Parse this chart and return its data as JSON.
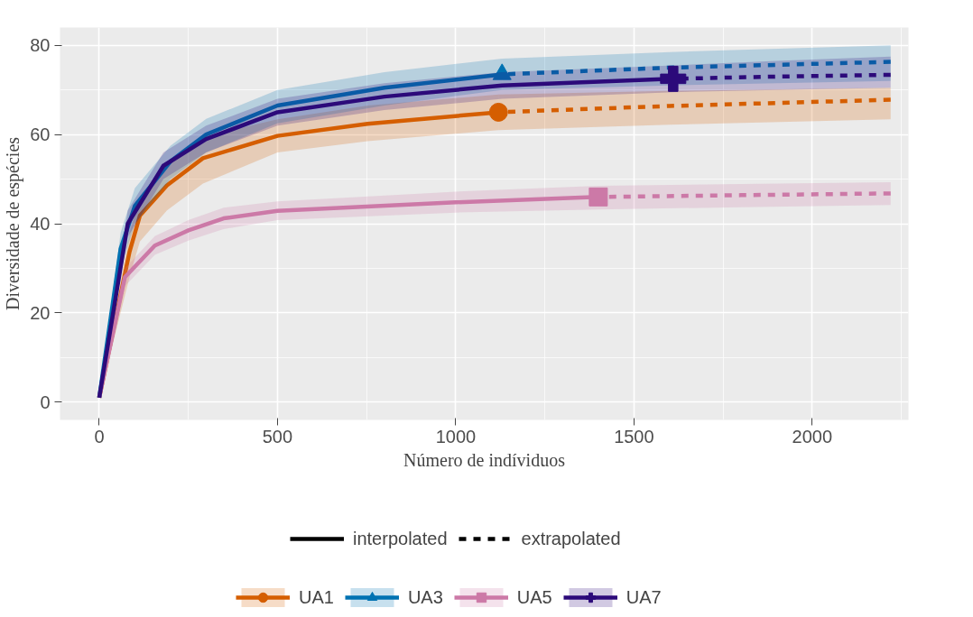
{
  "chart_data": {
    "type": "line",
    "xlabel": "Número de indíviduos",
    "ylabel": "Diversidade de espécies",
    "xlim": [
      -110,
      2270
    ],
    "ylim": [
      -4,
      84
    ],
    "xticks": [
      0,
      500,
      1000,
      1500,
      2000
    ],
    "yticks": [
      0,
      20,
      40,
      60,
      80
    ],
    "grid": true,
    "legend": "bottom",
    "annotations": [
      "interpolated",
      "extrapolated"
    ],
    "series": [
      {
        "type": "line",
        "line_style": "solid",
        "color": "#d55e00",
        "x": [
          0,
          85,
          114,
          190,
          291,
          500,
          753,
          1120
        ],
        "values": [
          1,
          33.7,
          41.8,
          48.6,
          54.7,
          59.7,
          62.4,
          65
        ],
        "lower": [
          1,
          28,
          36,
          43,
          49,
          56,
          58.5,
          61
        ],
        "upper": [
          1,
          38,
          46,
          53.5,
          59.5,
          63.4,
          66.5,
          69
        ]
      },
      {
        "type": "line",
        "line_style": "dashed",
        "color": "#d55e00",
        "x": [
          1120,
          1600,
          2220
        ],
        "values": [
          65,
          66.4,
          67.8
        ],
        "lower": [
          61,
          62.2,
          63.4
        ],
        "upper": [
          69,
          69.8,
          70.5
        ]
      },
      {
        "type": "scatter",
        "name": "UA1",
        "marker": "circle",
        "color": "#d55e00",
        "x": [
          1120
        ],
        "values": [
          65
        ]
      },
      {
        "type": "line",
        "line_style": "solid",
        "color": "#0072b2",
        "x": [
          0,
          60,
          100,
          200,
          300,
          500,
          800,
          1130
        ],
        "values": [
          1,
          34.4,
          44,
          54,
          60,
          66.5,
          70.5,
          73.5
        ],
        "lower": [
          1,
          30,
          40,
          50,
          56,
          62.5,
          66.5,
          70
        ],
        "upper": [
          1,
          38,
          48,
          57.5,
          63.5,
          70,
          74,
          77
        ]
      },
      {
        "type": "line",
        "line_style": "dashed",
        "color": "#0072b2",
        "x": [
          1130,
          1600,
          2220
        ],
        "values": [
          73.5,
          75,
          76.3
        ],
        "lower": [
          70,
          71,
          72
        ],
        "upper": [
          77,
          78.5,
          80
        ]
      },
      {
        "type": "scatter",
        "name": "UA3",
        "marker": "triangle",
        "color": "#0072b2",
        "x": [
          1130
        ],
        "values": [
          73.5
        ]
      },
      {
        "type": "line",
        "line_style": "solid",
        "color": "#cc79a7",
        "x": [
          0,
          72,
          156,
          250,
          349,
          500,
          1000,
          1400
        ],
        "values": [
          1,
          28,
          35.1,
          38.5,
          41.2,
          42.9,
          44.8,
          46
        ],
        "lower": [
          1,
          26,
          33,
          36.2,
          38.8,
          40.8,
          42.5,
          43.2
        ],
        "upper": [
          1,
          30,
          37.2,
          40.8,
          43.6,
          45,
          47.2,
          48.5
        ]
      },
      {
        "type": "line",
        "line_style": "dashed",
        "color": "#cc79a7",
        "x": [
          1400,
          1800,
          2220
        ],
        "values": [
          46,
          46.4,
          46.8
        ],
        "lower": [
          43.2,
          43.7,
          44.2
        ],
        "upper": [
          48.5,
          48.9,
          49.3
        ]
      },
      {
        "type": "scatter",
        "name": "UA5",
        "marker": "square",
        "color": "#cc79a7",
        "x": [
          1400
        ],
        "values": [
          46
        ]
      },
      {
        "type": "line",
        "line_style": "solid",
        "color": "#2c0a7a",
        "x": [
          0,
          80,
          180,
          300,
          500,
          800,
          1130,
          1610
        ],
        "values": [
          1,
          40,
          53,
          59,
          65,
          68.5,
          71,
          72.5
        ],
        "lower": [
          1,
          37,
          50,
          56,
          62,
          65.5,
          68,
          69.5
        ],
        "upper": [
          1,
          43,
          56,
          62,
          68,
          71.5,
          74,
          75.5
        ]
      },
      {
        "type": "line",
        "line_style": "dashed",
        "color": "#2c0a7a",
        "x": [
          1610,
          1900,
          2220
        ],
        "values": [
          72.5,
          73,
          73.4
        ],
        "lower": [
          69.5,
          70,
          70.5
        ],
        "upper": [
          75.5,
          76.5,
          77.5
        ]
      },
      {
        "type": "scatter",
        "name": "UA7",
        "marker": "cross",
        "color": "#2c0a7a",
        "x": [
          1610
        ],
        "values": [
          72.5
        ]
      }
    ]
  }
}
